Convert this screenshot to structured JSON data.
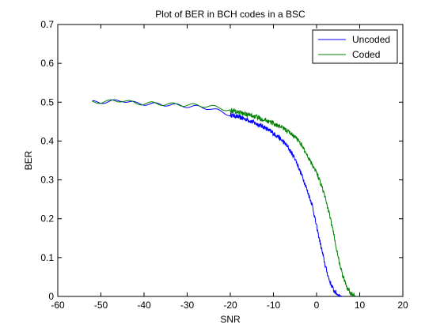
{
  "chart_data": {
    "type": "line",
    "title": "Plot of BER in BCH codes in a BSC",
    "xlabel": "SNR",
    "ylabel": "BER",
    "xlim": [
      -60,
      20
    ],
    "ylim": [
      0,
      0.7
    ],
    "xticks": [
      "-60",
      "-50",
      "-40",
      "-30",
      "-20",
      "-10",
      "0",
      "10",
      "20"
    ],
    "yticks": [
      "0",
      "0.1",
      "0.2",
      "0.3",
      "0.4",
      "0.5",
      "0.6",
      "0.7"
    ],
    "grid": false,
    "legend_position": "top-right",
    "series": [
      {
        "name": "Uncoded",
        "color": "#0000ff",
        "x": [
          -52,
          -48,
          -45,
          -42,
          -38,
          -35,
          -30,
          -25,
          -20,
          -16,
          -12,
          -9,
          -7,
          -5,
          -3,
          -1,
          0,
          1,
          2,
          3,
          4,
          5,
          6
        ],
        "y": [
          0.5,
          0.501,
          0.505,
          0.497,
          0.495,
          0.494,
          0.49,
          0.485,
          0.468,
          0.455,
          0.435,
          0.412,
          0.39,
          0.355,
          0.3,
          0.235,
          0.18,
          0.13,
          0.08,
          0.04,
          0.015,
          0.004,
          0.0
        ]
      },
      {
        "name": "Coded",
        "color": "#008000",
        "x": [
          -52,
          -48,
          -45,
          -42,
          -38,
          -35,
          -30,
          -25,
          -20,
          -15,
          -12,
          -10,
          -8,
          -6,
          -4,
          -2,
          0,
          1,
          2,
          3,
          4,
          5,
          6,
          7,
          8,
          9
        ],
        "y": [
          0.5,
          0.502,
          0.505,
          0.497,
          0.497,
          0.495,
          0.493,
          0.49,
          0.48,
          0.465,
          0.455,
          0.445,
          0.435,
          0.42,
          0.4,
          0.36,
          0.32,
          0.29,
          0.255,
          0.21,
          0.16,
          0.1,
          0.055,
          0.025,
          0.008,
          0.001
        ]
      }
    ]
  }
}
